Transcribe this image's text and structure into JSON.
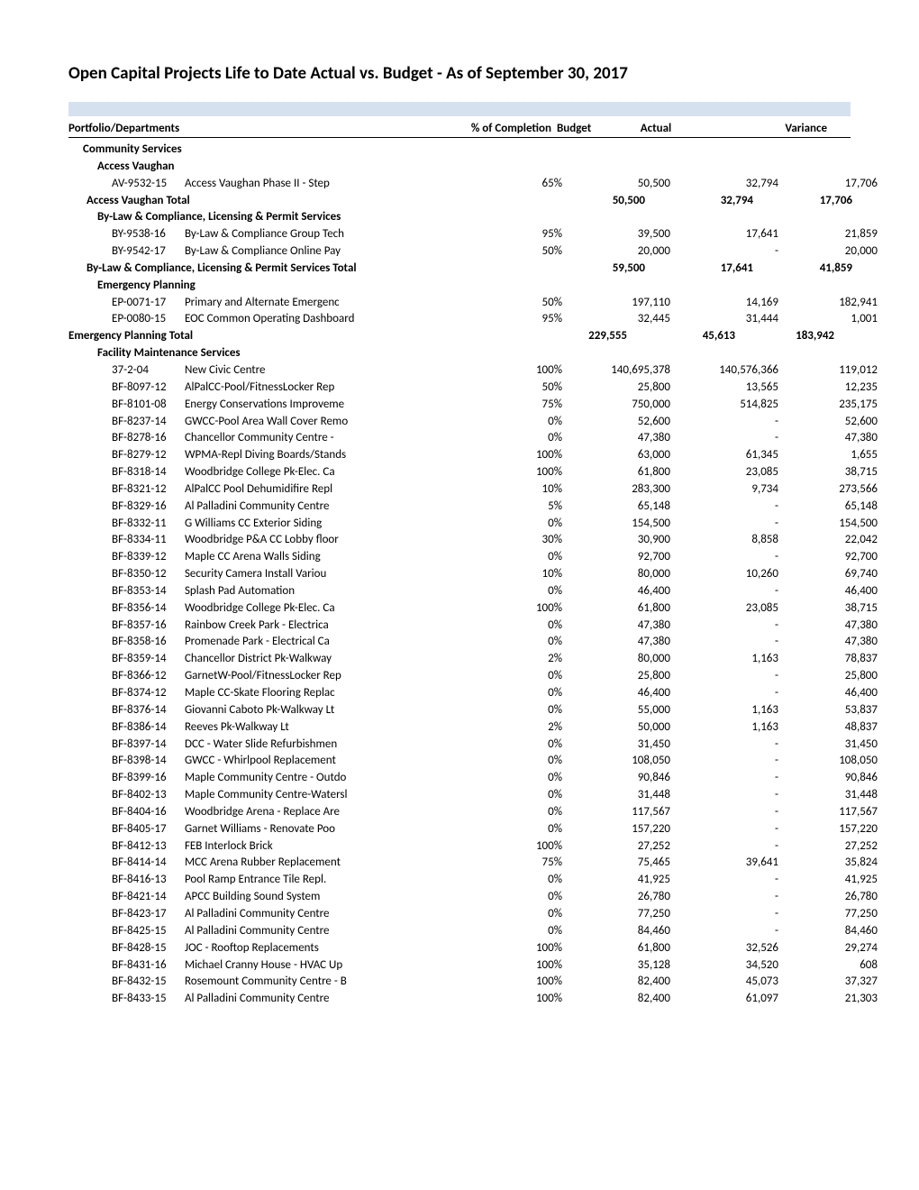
{
  "title": "Open Capital Projects Life to Date Actual vs. Budget - As of September 30, 2017",
  "columns": {
    "name": "Portfolio/Departments",
    "pct": "% of Completion",
    "budget": "Budget",
    "actual": "Actual",
    "variance": "Variance"
  },
  "portfolio_label": "Community Services",
  "sections": [
    {
      "name": "Access Vaughan",
      "rows": [
        {
          "code": "AV-9532-15",
          "name": "Access Vaughan Phase II - Step",
          "pct": "65%",
          "budget": "50,500",
          "actual": "32,794",
          "var": "17,706"
        }
      ],
      "total": {
        "label": "Access Vaughan Total",
        "budget": "50,500",
        "actual": "32,794",
        "var": "17,706"
      }
    },
    {
      "name": "By-Law & Compliance, Licensing & Permit Services",
      "rows": [
        {
          "code": "BY-9538-16",
          "name": "By-Law & Compliance Group Tech",
          "pct": "95%",
          "budget": "39,500",
          "actual": "17,641",
          "var": "21,859"
        },
        {
          "code": "BY-9542-17",
          "name": "By-Law & Compliance Online Pay",
          "pct": "50%",
          "budget": "20,000",
          "actual": "-",
          "var": "20,000"
        }
      ],
      "total": {
        "label": "By-Law & Compliance, Licensing & Permit Services Total",
        "budget": "59,500",
        "actual": "17,641",
        "var": "41,859"
      }
    },
    {
      "name": "Emergency Planning",
      "rows": [
        {
          "code": "EP-0071-17",
          "name": "Primary and Alternate Emergenc",
          "pct": "50%",
          "budget": "197,110",
          "actual": "14,169",
          "var": "182,941"
        },
        {
          "code": "EP-0080-15",
          "name": "EOC Common Operating Dashboard",
          "pct": "95%",
          "budget": "32,445",
          "actual": "31,444",
          "var": "1,001"
        }
      ],
      "total": {
        "label": "Emergency Planning Total",
        "budget": "229,555",
        "actual": "45,613",
        "var": "183,942",
        "topLevel": true
      }
    },
    {
      "name": "Facility Maintenance Services",
      "rows": [
        {
          "code": "37-2-04",
          "name": "New Civic Centre",
          "pct": "100%",
          "budget": "140,695,378",
          "actual": "140,576,366",
          "var": "119,012"
        },
        {
          "code": "BF-8097-12",
          "name": "AlPalCC-Pool/FitnessLocker Rep",
          "pct": "50%",
          "budget": "25,800",
          "actual": "13,565",
          "var": "12,235"
        },
        {
          "code": "BF-8101-08",
          "name": "Energy Conservations Improveme",
          "pct": "75%",
          "budget": "750,000",
          "actual": "514,825",
          "var": "235,175"
        },
        {
          "code": "BF-8237-14",
          "name": "GWCC-Pool Area Wall Cover Remo",
          "pct": "0%",
          "budget": "52,600",
          "actual": "-",
          "var": "52,600"
        },
        {
          "code": "BF-8278-16",
          "name": "Chancellor Community Centre -",
          "pct": "0%",
          "budget": "47,380",
          "actual": "-",
          "var": "47,380"
        },
        {
          "code": "BF-8279-12",
          "name": "WPMA-Repl Diving Boards/Stands",
          "pct": "100%",
          "budget": "63,000",
          "actual": "61,345",
          "var": "1,655"
        },
        {
          "code": "BF-8318-14",
          "name": "Woodbridge College Pk-Elec. Ca",
          "pct": "100%",
          "budget": "61,800",
          "actual": "23,085",
          "var": "38,715"
        },
        {
          "code": "BF-8321-12",
          "name": "AlPalCC Pool Dehumidifire Repl",
          "pct": "10%",
          "budget": "283,300",
          "actual": "9,734",
          "var": "273,566"
        },
        {
          "code": "BF-8329-16",
          "name": "Al Palladini Community Centre",
          "pct": "5%",
          "budget": "65,148",
          "actual": "-",
          "var": "65,148"
        },
        {
          "code": "BF-8332-11",
          "name": "G Williams CC Exterior Siding",
          "pct": "0%",
          "budget": "154,500",
          "actual": "-",
          "var": "154,500"
        },
        {
          "code": "BF-8334-11",
          "name": "Woodbridge P&A CC Lobby floor",
          "pct": "30%",
          "budget": "30,900",
          "actual": "8,858",
          "var": "22,042"
        },
        {
          "code": "BF-8339-12",
          "name": "Maple CC Arena Walls Siding",
          "pct": "0%",
          "budget": "92,700",
          "actual": "-",
          "var": "92,700"
        },
        {
          "code": "BF-8350-12",
          "name": "Security Camera Install Variou",
          "pct": "10%",
          "budget": "80,000",
          "actual": "10,260",
          "var": "69,740"
        },
        {
          "code": "BF-8353-14",
          "name": "Splash Pad Automation",
          "pct": "0%",
          "budget": "46,400",
          "actual": "-",
          "var": "46,400"
        },
        {
          "code": "BF-8356-14",
          "name": "Woodbridge College Pk-Elec. Ca",
          "pct": "100%",
          "budget": "61,800",
          "actual": "23,085",
          "var": "38,715"
        },
        {
          "code": "BF-8357-16",
          "name": "Rainbow Creek Park - Electrica",
          "pct": "0%",
          "budget": "47,380",
          "actual": "-",
          "var": "47,380"
        },
        {
          "code": "BF-8358-16",
          "name": "Promenade Park - Electrical Ca",
          "pct": "0%",
          "budget": "47,380",
          "actual": "-",
          "var": "47,380"
        },
        {
          "code": "BF-8359-14",
          "name": "Chancellor District Pk-Walkway",
          "pct": "2%",
          "budget": "80,000",
          "actual": "1,163",
          "var": "78,837"
        },
        {
          "code": "BF-8366-12",
          "name": "GarnetW-Pool/FitnessLocker Rep",
          "pct": "0%",
          "budget": "25,800",
          "actual": "-",
          "var": "25,800"
        },
        {
          "code": "BF-8374-12",
          "name": "Maple CC-Skate Flooring Replac",
          "pct": "0%",
          "budget": "46,400",
          "actual": "-",
          "var": "46,400"
        },
        {
          "code": "BF-8376-14",
          "name": "Giovanni Caboto Pk-Walkway Lt",
          "pct": "0%",
          "budget": "55,000",
          "actual": "1,163",
          "var": "53,837"
        },
        {
          "code": "BF-8386-14",
          "name": "Reeves Pk-Walkway Lt",
          "pct": "2%",
          "budget": "50,000",
          "actual": "1,163",
          "var": "48,837"
        },
        {
          "code": "BF-8397-14",
          "name": "DCC - Water Slide Refurbishmen",
          "pct": "0%",
          "budget": "31,450",
          "actual": "-",
          "var": "31,450"
        },
        {
          "code": "BF-8398-14",
          "name": "GWCC - Whirlpool Replacement",
          "pct": "0%",
          "budget": "108,050",
          "actual": "-",
          "var": "108,050"
        },
        {
          "code": "BF-8399-16",
          "name": "Maple Community Centre - Outdo",
          "pct": "0%",
          "budget": "90,846",
          "actual": "-",
          "var": "90,846"
        },
        {
          "code": "BF-8402-13",
          "name": "Maple Community Centre-Watersl",
          "pct": "0%",
          "budget": "31,448",
          "actual": "-",
          "var": "31,448"
        },
        {
          "code": "BF-8404-16",
          "name": "Woodbridge Arena - Replace Are",
          "pct": "0%",
          "budget": "117,567",
          "actual": "-",
          "var": "117,567"
        },
        {
          "code": "BF-8405-17",
          "name": "Garnet Williams - Renovate Poo",
          "pct": "0%",
          "budget": "157,220",
          "actual": "-",
          "var": "157,220"
        },
        {
          "code": "BF-8412-13",
          "name": "FEB Interlock Brick",
          "pct": "100%",
          "budget": "27,252",
          "actual": "-",
          "var": "27,252"
        },
        {
          "code": "BF-8414-14",
          "name": "MCC Arena Rubber Replacement",
          "pct": "75%",
          "budget": "75,465",
          "actual": "39,641",
          "var": "35,824"
        },
        {
          "code": "BF-8416-13",
          "name": "Pool Ramp Entrance Tile Repl.",
          "pct": "0%",
          "budget": "41,925",
          "actual": "-",
          "var": "41,925"
        },
        {
          "code": "BF-8421-14",
          "name": "APCC Building Sound System",
          "pct": "0%",
          "budget": "26,780",
          "actual": "-",
          "var": "26,780"
        },
        {
          "code": "BF-8423-17",
          "name": "Al Palladini Community Centre",
          "pct": "0%",
          "budget": "77,250",
          "actual": "-",
          "var": "77,250"
        },
        {
          "code": "BF-8425-15",
          "name": "Al Palladini Community Centre",
          "pct": "0%",
          "budget": "84,460",
          "actual": "-",
          "var": "84,460"
        },
        {
          "code": "BF-8428-15",
          "name": "JOC - Rooftop Replacements",
          "pct": "100%",
          "budget": "61,800",
          "actual": "32,526",
          "var": "29,274"
        },
        {
          "code": "BF-8431-16",
          "name": "Michael Cranny House - HVAC Up",
          "pct": "100%",
          "budget": "35,128",
          "actual": "34,520",
          "var": "608"
        },
        {
          "code": "BF-8432-15",
          "name": "Rosemount Community Centre - B",
          "pct": "100%",
          "budget": "82,400",
          "actual": "45,073",
          "var": "37,327"
        },
        {
          "code": "BF-8433-15",
          "name": "Al Palladini Community Centre",
          "pct": "100%",
          "budget": "82,400",
          "actual": "61,097",
          "var": "21,303"
        }
      ]
    }
  ]
}
